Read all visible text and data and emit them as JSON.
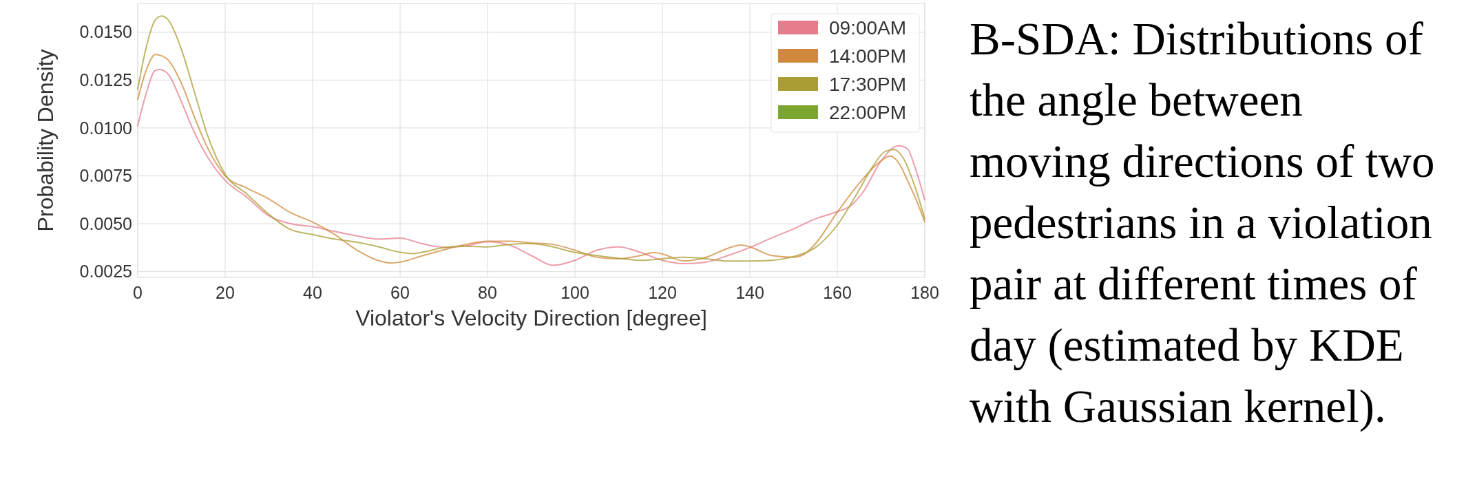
{
  "chart_data": {
    "type": "line",
    "xlabel": "Violator's Velocity Direction [degree]",
    "ylabel": "Probability Density",
    "xlim": [
      0,
      180
    ],
    "xticks": [
      0,
      20,
      40,
      60,
      80,
      100,
      120,
      140,
      160,
      180
    ],
    "ylim": [
      0.0022,
      0.0165
    ],
    "yticks": [
      {
        "value": 0.0025,
        "label": "0.0025"
      },
      {
        "value": 0.005,
        "label": "0.0050"
      },
      {
        "value": 0.0075,
        "label": "0.0075"
      },
      {
        "value": 0.01,
        "label": "0.0100"
      },
      {
        "value": 0.0125,
        "label": "0.0125"
      },
      {
        "value": 0.015,
        "label": "0.0150"
      }
    ],
    "grid": true,
    "legend": "top right",
    "line_style": "solid",
    "marker": "none",
    "annotations": [
      "B-SDA: Distributions of the angle between moving directions of two pedestrians in a violation pair at different times of day (estimated by KDE with Gaussian kernel)."
    ],
    "series": [
      {
        "name": "09:00AM",
        "color": "#e77c8d",
        "x": [
          0,
          2,
          4,
          5,
          7,
          10,
          13,
          16,
          20,
          25,
          30,
          35,
          40,
          45,
          50,
          55,
          60,
          65,
          70,
          75,
          80,
          85,
          90,
          95,
          100,
          105,
          110,
          115,
          120,
          125,
          130,
          135,
          140,
          145,
          150,
          155,
          160,
          163,
          166,
          170,
          174,
          176,
          178,
          180
        ],
        "values": [
          0.0101,
          0.01185,
          0.013,
          0.01305,
          0.0128,
          0.01136,
          0.00975,
          0.00847,
          0.00726,
          0.00638,
          0.00541,
          0.005,
          0.00485,
          0.0046,
          0.00437,
          0.0042,
          0.00425,
          0.00396,
          0.00377,
          0.00384,
          0.00406,
          0.00389,
          0.00334,
          0.00283,
          0.00309,
          0.00362,
          0.00379,
          0.0035,
          0.00309,
          0.00292,
          0.003,
          0.00334,
          0.00376,
          0.00426,
          0.00473,
          0.00526,
          0.00563,
          0.00593,
          0.00669,
          0.00828,
          0.00907,
          0.00892,
          0.00778,
          0.00624
        ]
      },
      {
        "name": "14:00PM",
        "color": "#d0893a",
        "x": [
          0,
          2,
          4,
          5,
          7,
          10,
          13,
          16,
          20,
          25,
          30,
          35,
          40,
          45,
          50,
          55,
          58,
          60,
          65,
          70,
          75,
          80,
          85,
          90,
          95,
          100,
          105,
          110,
          115,
          118,
          120,
          125,
          130,
          135,
          138,
          140,
          145,
          150,
          153,
          155,
          160,
          165,
          170,
          172,
          174,
          176,
          178,
          180
        ],
        "values": [
          0.01149,
          0.01305,
          0.01383,
          0.0138,
          0.01354,
          0.01233,
          0.01056,
          0.00895,
          0.0075,
          0.00686,
          0.00629,
          0.00557,
          0.00509,
          0.00444,
          0.00364,
          0.00308,
          0.00295,
          0.003,
          0.00332,
          0.00364,
          0.00392,
          0.00409,
          0.00409,
          0.004,
          0.00392,
          0.00362,
          0.00325,
          0.00317,
          0.00334,
          0.00349,
          0.00342,
          0.00305,
          0.00325,
          0.00372,
          0.00389,
          0.00379,
          0.00334,
          0.00325,
          0.0035,
          0.00396,
          0.0056,
          0.00711,
          0.00828,
          0.00853,
          0.00819,
          0.00728,
          0.00627,
          0.0051
        ]
      },
      {
        "name": "17:30PM",
        "color": "#a99d34",
        "x": [
          0,
          2,
          4,
          5.5,
          7,
          10,
          13,
          16,
          20,
          25,
          30,
          35,
          40,
          45,
          50,
          55,
          60,
          63,
          65,
          70,
          75,
          80,
          85,
          90,
          95,
          100,
          105,
          110,
          115,
          120,
          125,
          130,
          135,
          140,
          145,
          150,
          155,
          160,
          165,
          168,
          171,
          173,
          175,
          178,
          180
        ],
        "values": [
          0.01201,
          0.01426,
          0.01563,
          0.01584,
          0.01563,
          0.0141,
          0.01185,
          0.0096,
          0.00758,
          0.00654,
          0.00549,
          0.00469,
          0.00444,
          0.0042,
          0.00404,
          0.0038,
          0.00351,
          0.00344,
          0.00351,
          0.00375,
          0.00383,
          0.00379,
          0.00392,
          0.00396,
          0.00379,
          0.0035,
          0.00334,
          0.0032,
          0.00309,
          0.00317,
          0.00325,
          0.00317,
          0.00305,
          0.00305,
          0.00309,
          0.00329,
          0.00376,
          0.00493,
          0.00677,
          0.00795,
          0.00878,
          0.00887,
          0.00845,
          0.00677,
          0.00526
        ]
      },
      {
        "name": "22:00PM",
        "color": "#7ca72f"
      }
    ]
  }
}
